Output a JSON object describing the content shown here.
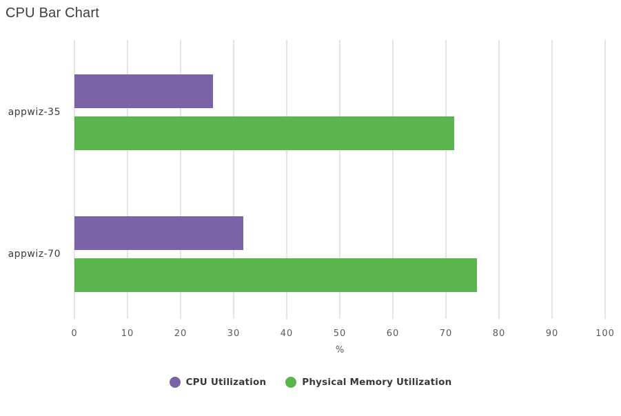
{
  "page": {
    "title": "CPU Bar Chart"
  },
  "chart_data": {
    "type": "bar",
    "orientation": "horizontal",
    "title": "CPU Bar Chart",
    "categories": [
      "appwiz-35",
      "appwiz-70"
    ],
    "series": [
      {
        "name": "CPU Utilization",
        "color": "#7C63A8",
        "values": [
          26.1,
          31.8
        ]
      },
      {
        "name": "Physical Memory Utilization",
        "color": "#5BB54E",
        "values": [
          71.6,
          75.8
        ]
      }
    ],
    "xlabel": "%",
    "xlim": [
      0,
      100
    ],
    "xticks": [
      0,
      10,
      20,
      30,
      40,
      50,
      60,
      70,
      80,
      90,
      100
    ],
    "grid": true,
    "gridline_color": "#e4e4e4",
    "legend_position": "bottom",
    "text_colors": {
      "title": "#3d3d3d",
      "tick": "#5a5a5a",
      "category": "#3b3b3b",
      "legend": "#383838"
    }
  }
}
